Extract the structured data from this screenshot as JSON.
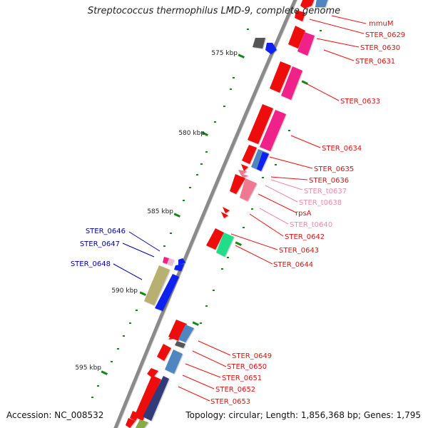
{
  "title": "Streptococcus thermophilus LMD-9, complete genome",
  "footer": {
    "accession": "Accession: NC_008532",
    "topology": "Topology: circular; Length: 1,856,368 bp; Genes: 1,795"
  },
  "colors": {
    "backbone": "#8a8a8a",
    "cds_red": "#ee1111",
    "cds_magenta": "#ee2288",
    "cds_blue": "#1122ee",
    "cds_steel": "#4f86c0",
    "cds_gray": "#555555",
    "cds_olive": "#b8b070",
    "cds_slate": "#303a7a",
    "cds_green": "#22dd88",
    "rna_pink": "#f07890",
    "label_red": "#dd1111",
    "label_pink": "#ee88aa",
    "label_blue": "#0000aa",
    "tick_green": "#118811"
  },
  "scale_labels": [
    "575 kbp",
    "580 kbp",
    "585 kbp",
    "590 kbp",
    "595 kbp"
  ],
  "right_labels": [
    "mmuM",
    "STER_0629",
    "STER_0630",
    "STER_0631",
    "STER_0633",
    "STER_0634",
    "STER_0635",
    "STER_0636",
    "STER_t0637",
    "STER_t0638",
    "rpsA",
    "STER_t0640",
    "STER_0642",
    "STER_0643",
    "STER_0644",
    "STER_0649",
    "STER_0650",
    "STER_0651",
    "STER_0652",
    "STER_0653"
  ],
  "left_labels": [
    "STER_0646",
    "STER_0647",
    "STER_0648"
  ]
}
